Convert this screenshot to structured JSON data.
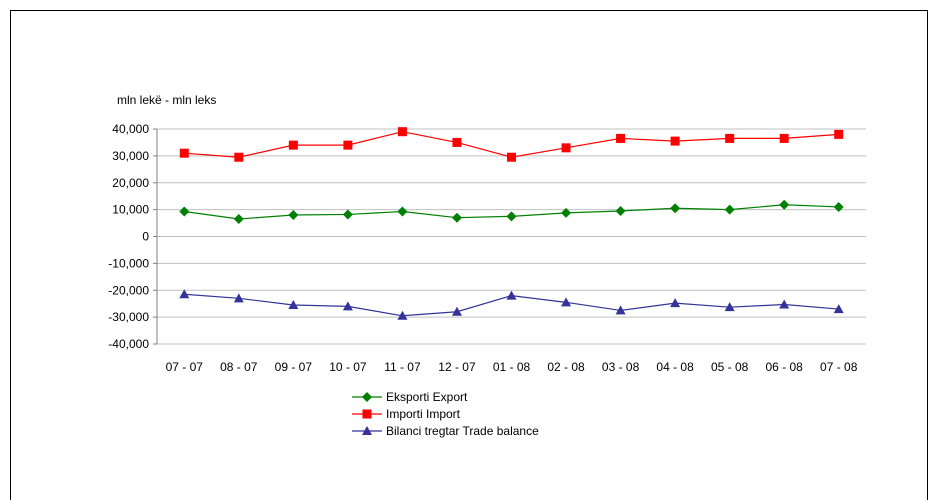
{
  "chart_data": {
    "type": "line",
    "title": "",
    "unit_label": "mln lekë - mln leks",
    "xlabel": "",
    "ylabel": "",
    "categories": [
      "07 - 07",
      "08 - 07",
      "09 - 07",
      "10 - 07",
      "11 - 07",
      "12 - 07",
      "01 - 08",
      "02 - 08",
      "03 - 08",
      "04 - 08",
      "05 - 08",
      "06 - 08",
      "07 - 08"
    ],
    "ylim": [
      -40000,
      40000
    ],
    "ytick_step": 10000,
    "yticks": [
      "40,000",
      "30,000",
      "20,000",
      "10,000",
      "0",
      "-10,000",
      "-20,000",
      "-30,000",
      "-40,000"
    ],
    "grid": true,
    "legend_position": "bottom",
    "series": [
      {
        "name": "Eksporti Export",
        "color": "#008000",
        "marker": "diamond",
        "values": [
          9300,
          6500,
          8000,
          8200,
          9300,
          7000,
          7500,
          8800,
          9500,
          10500,
          10000,
          11800,
          11000
        ]
      },
      {
        "name": "Importi Import",
        "color": "#ff0000",
        "marker": "square",
        "values": [
          31000,
          29500,
          34000,
          34000,
          39000,
          35000,
          29500,
          33000,
          36500,
          35500,
          36500,
          36500,
          38000
        ]
      },
      {
        "name": "Bilanci tregtar Trade balance",
        "color": "#333399",
        "marker": "triangle",
        "values": [
          -21500,
          -23000,
          -25500,
          -26000,
          -29500,
          -28000,
          -22000,
          -24500,
          -27500,
          -24800,
          -26300,
          -25300,
          -27000
        ]
      }
    ]
  }
}
